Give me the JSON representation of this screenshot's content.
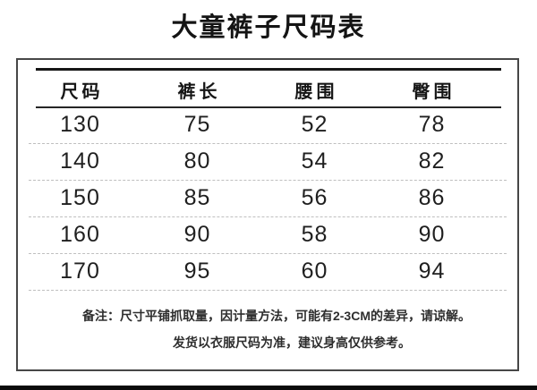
{
  "page": {
    "title": "大童裤子尺码表"
  },
  "size_table": {
    "columns": [
      "尺码",
      "裤长",
      "腰围",
      "臀围"
    ],
    "rows": [
      [
        "130",
        "75",
        "52",
        "78"
      ],
      [
        "140",
        "80",
        "54",
        "82"
      ],
      [
        "150",
        "85",
        "56",
        "86"
      ],
      [
        "160",
        "90",
        "58",
        "90"
      ],
      [
        "170",
        "95",
        "60",
        "94"
      ]
    ]
  },
  "notes": {
    "remark": "备注：尺寸平铺抓取量，因计量方法，可能有2-3CM的差异，请谅解。",
    "shipping": "发货以衣服尺码为准，建议身高仅供参考。"
  },
  "colors": {
    "text": "#1d1d1d",
    "thick_rule": "#161616",
    "header_rule": "#262626",
    "dashed_separator": "#bfbfbf",
    "panel_border": "#474747",
    "bottom_bar": "#0b0b0b",
    "background": "#ffffff"
  }
}
